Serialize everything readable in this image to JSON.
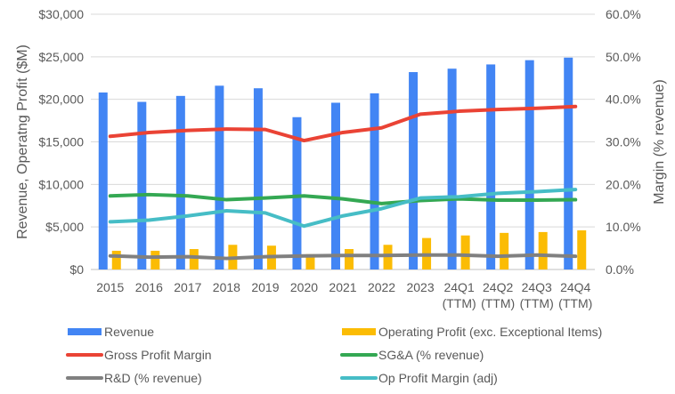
{
  "chart_data": {
    "type": "bar",
    "title": "",
    "categories": [
      "2015",
      "2016",
      "2017",
      "2018",
      "2019",
      "2020",
      "2021",
      "2022",
      "2023",
      "24Q1\n(TTM)",
      "24Q2\n(TTM)",
      "24Q3\n(TTM)",
      "24Q4\n(TTM)"
    ],
    "ylabel": "Revenue, Operatng Profit ($M)",
    "y2label": "Margin (% revenue)",
    "ylim": [
      0,
      30000
    ],
    "y2lim": [
      0,
      60
    ],
    "yticks": [
      "$0",
      "$5,000",
      "$10,000",
      "$15,000",
      "$20,000",
      "$25,000",
      "$30,000"
    ],
    "y2ticks": [
      "0.0%",
      "10.0%",
      "20.0%",
      "30.0%",
      "40.0%",
      "50.0%",
      "60.0%"
    ],
    "grid": true,
    "legend_position": "bottom",
    "bar_series": [
      {
        "name": "Revenue",
        "color": "#4285f4",
        "values": [
          20800,
          19700,
          20400,
          21600,
          21300,
          17900,
          19600,
          20700,
          23200,
          23600,
          24100,
          24600,
          24900
        ]
      },
      {
        "name": "Operating Profit (exc. Exceptional Items)",
        "color": "#fbbc04",
        "values": [
          2200,
          2200,
          2400,
          2900,
          2800,
          1800,
          2400,
          2900,
          3700,
          4000,
          4300,
          4400,
          4600
        ]
      }
    ],
    "line_series": [
      {
        "name": "Gross Profit Margin",
        "color": "#ea4335",
        "values": [
          31.3,
          32.2,
          32.7,
          33.0,
          32.9,
          30.3,
          32.2,
          33.3,
          36.5,
          37.2,
          37.6,
          37.9,
          38.3
        ]
      },
      {
        "name": "SG&A (% revenue)",
        "color": "#34a853",
        "values": [
          17.3,
          17.6,
          17.3,
          16.4,
          16.8,
          17.3,
          16.6,
          15.5,
          16.2,
          16.6,
          16.3,
          16.3,
          16.4
        ]
      },
      {
        "name": "R&D (% revenue)",
        "color": "#808080",
        "values": [
          3.2,
          2.9,
          3.0,
          2.6,
          3.0,
          3.2,
          3.3,
          3.3,
          3.4,
          3.4,
          3.1,
          3.4,
          3.1
        ]
      },
      {
        "name": "Op Profit Margin (adj)",
        "color": "#46bdc6",
        "values": [
          11.2,
          11.6,
          12.6,
          13.8,
          13.3,
          10.2,
          12.6,
          14.3,
          16.8,
          17.1,
          17.9,
          18.3,
          18.8
        ]
      }
    ]
  }
}
